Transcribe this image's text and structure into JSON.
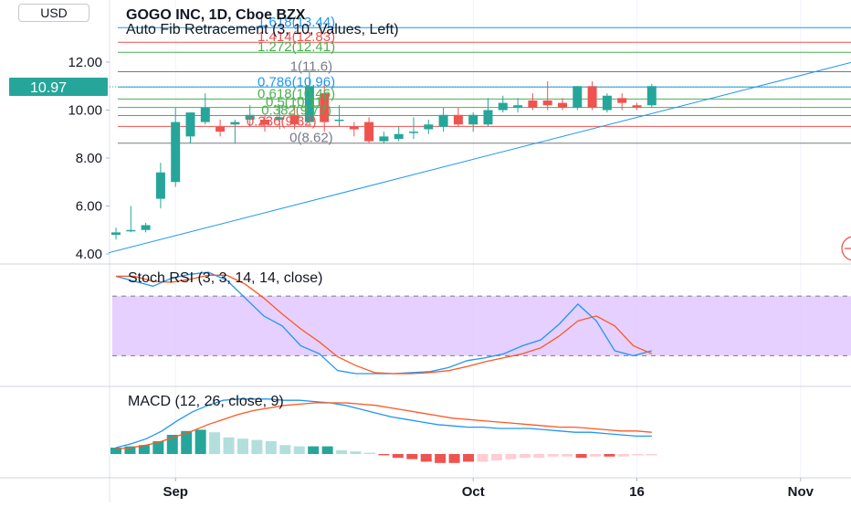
{
  "currency_button": "USD",
  "colors": {
    "up": "#26a69a",
    "down": "#ef5350",
    "trendline": "#2196f3",
    "stoch_k": "#2196f3",
    "stoch_d": "#ff5722",
    "macd_line": "#2196f3",
    "signal_line": "#ff5722",
    "stoch_band": "#e1c8ff"
  },
  "chart_data": [
    {
      "type": "candlestick",
      "title": "GOGO INC, 1D, Cboe BZX",
      "indicator_label": "Auto Fib Retracement (3, 10, Values, Left)",
      "last_price": "10.97",
      "y_ticks": [
        "4.00",
        "6.00",
        "8.00",
        "10.00",
        "12.00"
      ],
      "ylim": [
        3.6,
        14.4
      ],
      "x_ticks": [
        {
          "label": "Sep",
          "index": 4
        },
        {
          "label": "Oct",
          "index": 24
        },
        {
          "label": "16",
          "index": 35
        },
        {
          "label": "Nov",
          "index": 46
        }
      ],
      "candles": [
        {
          "o": 4.8,
          "h": 5.1,
          "l": 4.6,
          "c": 4.9
        },
        {
          "o": 5.0,
          "h": 6.0,
          "l": 4.9,
          "c": 5.0
        },
        {
          "o": 5.0,
          "h": 5.3,
          "l": 4.9,
          "c": 5.2
        },
        {
          "o": 6.3,
          "h": 7.8,
          "l": 5.9,
          "c": 7.4
        },
        {
          "o": 7.0,
          "h": 10.1,
          "l": 6.8,
          "c": 9.5
        },
        {
          "o": 8.9,
          "h": 9.9,
          "l": 8.6,
          "c": 9.9
        },
        {
          "o": 9.5,
          "h": 10.7,
          "l": 9.4,
          "c": 10.1
        },
        {
          "o": 9.3,
          "h": 9.6,
          "l": 8.9,
          "c": 9.1
        },
        {
          "o": 9.4,
          "h": 9.6,
          "l": 8.6,
          "c": 9.5
        },
        {
          "o": 9.6,
          "h": 10.2,
          "l": 9.3,
          "c": 9.8
        },
        {
          "o": 9.6,
          "h": 9.8,
          "l": 9.1,
          "c": 9.4
        },
        {
          "o": 9.6,
          "h": 10.2,
          "l": 9.2,
          "c": 9.7
        },
        {
          "o": 9.8,
          "h": 10.2,
          "l": 9.2,
          "c": 9.4
        },
        {
          "o": 9.5,
          "h": 11.6,
          "l": 9.4,
          "c": 11.0
        },
        {
          "o": 10.7,
          "h": 11.2,
          "l": 9.1,
          "c": 9.5
        },
        {
          "o": 9.6,
          "h": 10.2,
          "l": 9.3,
          "c": 9.6
        },
        {
          "o": 9.3,
          "h": 9.5,
          "l": 8.9,
          "c": 9.2
        },
        {
          "o": 9.5,
          "h": 9.7,
          "l": 8.6,
          "c": 8.7
        },
        {
          "o": 8.7,
          "h": 9.1,
          "l": 8.6,
          "c": 8.9
        },
        {
          "o": 8.8,
          "h": 9.3,
          "l": 8.7,
          "c": 9.0
        },
        {
          "o": 9.1,
          "h": 9.7,
          "l": 8.8,
          "c": 9.1
        },
        {
          "o": 9.2,
          "h": 9.6,
          "l": 9.0,
          "c": 9.4
        },
        {
          "o": 9.3,
          "h": 10.1,
          "l": 9.1,
          "c": 9.8
        },
        {
          "o": 9.8,
          "h": 10.1,
          "l": 9.3,
          "c": 9.4
        },
        {
          "o": 9.4,
          "h": 9.9,
          "l": 9.1,
          "c": 9.8
        },
        {
          "o": 9.4,
          "h": 10.5,
          "l": 9.3,
          "c": 10.0
        },
        {
          "o": 10.0,
          "h": 10.6,
          "l": 9.9,
          "c": 10.3
        },
        {
          "o": 10.1,
          "h": 10.5,
          "l": 9.9,
          "c": 10.2
        },
        {
          "o": 10.4,
          "h": 10.7,
          "l": 10.0,
          "c": 10.1
        },
        {
          "o": 10.4,
          "h": 11.2,
          "l": 10.0,
          "c": 10.2
        },
        {
          "o": 10.3,
          "h": 10.5,
          "l": 10.0,
          "c": 10.1
        },
        {
          "o": 10.1,
          "h": 11.0,
          "l": 10.0,
          "c": 11.0
        },
        {
          "o": 11.0,
          "h": 11.2,
          "l": 10.0,
          "c": 10.1
        },
        {
          "o": 10.0,
          "h": 10.7,
          "l": 9.9,
          "c": 10.6
        },
        {
          "o": 10.5,
          "h": 10.7,
          "l": 10.0,
          "c": 10.3
        },
        {
          "o": 10.2,
          "h": 10.3,
          "l": 10.0,
          "c": 10.1
        },
        {
          "o": 10.2,
          "h": 11.1,
          "l": 10.1,
          "c": 11.0
        }
      ],
      "fib_levels": [
        {
          "label": "1.618(13.44)",
          "value": 13.44,
          "color": "#2196f3",
          "label_index": 12
        },
        {
          "label": "1.414(12.83)",
          "value": 12.83,
          "color": "#ef5350",
          "label_index": 12
        },
        {
          "label": "1.272(12.41)",
          "value": 12.41,
          "color": "#4caf50",
          "label_index": 12
        },
        {
          "label": "1(11.6)",
          "value": 11.6,
          "color": "#787b86",
          "label_index": 13
        },
        {
          "label": "0.786(10.96)",
          "value": 10.96,
          "color": "#2196f3",
          "label_index": 12
        },
        {
          "label": "0.618(10.46)",
          "value": 10.46,
          "color": "#4caf50",
          "label_index": 12
        },
        {
          "label": "0.5(10.11)",
          "value": 10.11,
          "color": "#4caf50",
          "label_index": 12
        },
        {
          "label": "0.382(9.77)",
          "value": 9.77,
          "color": "#4caf50",
          "label_index": 12
        },
        {
          "label": "0.236(9.32)",
          "value": 9.32,
          "color": "#ef5350",
          "label_index": 11
        },
        {
          "label": "0(8.62)",
          "value": 8.62,
          "color": "#787b86",
          "label_index": 13
        }
      ],
      "trendline": {
        "from": {
          "index": 0,
          "value": 4.05
        },
        "to": {
          "index": 52,
          "value": 12.4
        }
      }
    },
    {
      "type": "line",
      "title": "Stoch RSI (3, 3, 14, 14, close)",
      "band": [
        20,
        80
      ],
      "ylim": [
        -10,
        105
      ],
      "series": [
        {
          "id": "k",
          "values": [
            100,
            95,
            90,
            98,
            102,
            104,
            96,
            78,
            60,
            50,
            30,
            22,
            5,
            2,
            2,
            2,
            3,
            4,
            8,
            15,
            18,
            22,
            30,
            36,
            52,
            72,
            55,
            25,
            20,
            25
          ]
        },
        {
          "id": "d",
          "values": [
            100,
            100,
            95,
            94,
            97,
            101,
            101,
            92,
            78,
            62,
            47,
            34,
            19,
            10,
            3,
            2,
            2,
            3,
            5,
            9,
            14,
            18,
            22,
            28,
            40,
            55,
            60,
            50,
            30,
            22
          ]
        }
      ]
    },
    {
      "type": "bar",
      "title": "MACD (12, 26, close, 9)",
      "ylim": [
        -0.15,
        0.45
      ],
      "histogram": [
        0.05,
        0.06,
        0.07,
        0.1,
        0.15,
        0.18,
        0.19,
        0.17,
        0.13,
        0.12,
        0.11,
        0.1,
        0.07,
        0.06,
        0.06,
        0.06,
        0.03,
        0.02,
        0.01,
        -0.01,
        -0.03,
        -0.04,
        -0.06,
        -0.07,
        -0.07,
        -0.06,
        -0.06,
        -0.05,
        -0.04,
        -0.03,
        -0.03,
        -0.02,
        -0.02,
        -0.03,
        -0.02,
        -0.02,
        -0.02,
        -0.01,
        -0.01
      ],
      "histogram_colors": [
        "#26a69a",
        "#26a69a",
        "#26a69a",
        "#26a69a",
        "#26a69a",
        "#26a69a",
        "#26a69a",
        "#b2dfdb",
        "#b2dfdb",
        "#b2dfdb",
        "#b2dfdb",
        "#b2dfdb",
        "#b2dfdb",
        "#b2dfdb",
        "#26a69a",
        "#26a69a",
        "#b2dfdb",
        "#b2dfdb",
        "#b2dfdb",
        "#ef5350",
        "#ef5350",
        "#ef5350",
        "#ef5350",
        "#ef5350",
        "#ef5350",
        "#ef5350",
        "#ffcdd2",
        "#ffcdd2",
        "#ffcdd2",
        "#ffcdd2",
        "#ffcdd2",
        "#ffcdd2",
        "#ffcdd2",
        "#ef5350",
        "#ffcdd2",
        "#ef5350",
        "#ffcdd2",
        "#ffcdd2",
        "#ffcdd2"
      ],
      "series": [
        {
          "id": "macd",
          "values": [
            0.05,
            0.08,
            0.12,
            0.18,
            0.26,
            0.33,
            0.38,
            0.42,
            0.43,
            0.43,
            0.43,
            0.42,
            0.42,
            0.41,
            0.4,
            0.38,
            0.35,
            0.32,
            0.29,
            0.27,
            0.25,
            0.23,
            0.22,
            0.21,
            0.21,
            0.2,
            0.2,
            0.2,
            0.19,
            0.18,
            0.17,
            0.17,
            0.16,
            0.15,
            0.14,
            0.14
          ]
        },
        {
          "id": "signal",
          "values": [
            0.04,
            0.05,
            0.07,
            0.1,
            0.14,
            0.18,
            0.23,
            0.27,
            0.31,
            0.34,
            0.36,
            0.38,
            0.39,
            0.4,
            0.4,
            0.4,
            0.39,
            0.38,
            0.36,
            0.34,
            0.32,
            0.3,
            0.28,
            0.27,
            0.26,
            0.25,
            0.24,
            0.23,
            0.22,
            0.21,
            0.21,
            0.2,
            0.19,
            0.18,
            0.18,
            0.17
          ]
        }
      ]
    }
  ]
}
